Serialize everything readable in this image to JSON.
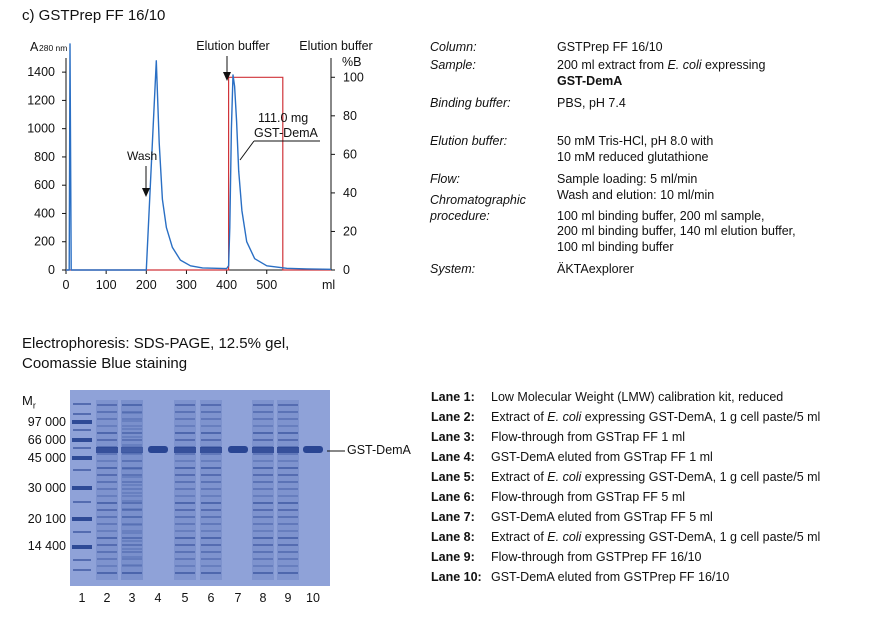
{
  "chrom_title": "c) GSTPrep FF 16/10",
  "chart_data": {
    "type": "line",
    "left_axis_label": "A280 nm",
    "left_axis_label_main": "A",
    "left_axis_label_sub": "280 nm",
    "right_axis_label": "%B",
    "x_unit": "ml",
    "x_ticks": [
      0,
      100,
      200,
      300,
      400,
      500
    ],
    "y_ticks": [
      0,
      200,
      400,
      600,
      800,
      1000,
      1200,
      1400
    ],
    "y2_ticks": [
      0,
      20,
      40,
      60,
      80,
      100
    ],
    "xlim": [
      0,
      660
    ],
    "ylim": [
      0,
      1500
    ],
    "y2lim": [
      0,
      110
    ],
    "annotations": {
      "elution1": "Elution buffer",
      "elution2": "Elution buffer",
      "wash": "Wash",
      "yield_line1": "111.0 mg",
      "yield_line2": "GST-DemA"
    },
    "absorbance": [
      [
        0,
        0
      ],
      [
        8,
        0
      ],
      [
        10,
        1600
      ],
      [
        13,
        0
      ],
      [
        200,
        0
      ],
      [
        225,
        1480
      ],
      [
        232,
        900
      ],
      [
        240,
        500
      ],
      [
        250,
        300
      ],
      [
        265,
        160
      ],
      [
        285,
        70
      ],
      [
        310,
        30
      ],
      [
        340,
        15
      ],
      [
        400,
        10
      ],
      [
        405,
        30
      ],
      [
        408,
        300
      ],
      [
        412,
        1000
      ],
      [
        416,
        1380
      ],
      [
        420,
        1300
      ],
      [
        425,
        1050
      ],
      [
        430,
        700
      ],
      [
        438,
        420
      ],
      [
        450,
        200
      ],
      [
        470,
        80
      ],
      [
        500,
        30
      ],
      [
        550,
        12
      ],
      [
        600,
        8
      ],
      [
        660,
        5
      ]
    ],
    "percent_b": [
      [
        0,
        0
      ],
      [
        405,
        0
      ],
      [
        405,
        100
      ],
      [
        540,
        100
      ],
      [
        540,
        0
      ],
      [
        660,
        0
      ]
    ]
  },
  "conditions": [
    {
      "label": "Column:",
      "lines": [
        "GSTPrep FF 16/10"
      ]
    },
    {
      "label": "Sample:",
      "lines": [
        "200 ml extract from E. coli expressing",
        "GST-DemA"
      ]
    },
    {
      "label": "Binding buffer:",
      "lines": [
        "PBS, pH 7.4"
      ]
    },
    {
      "label": "Elution buffer:",
      "lines": [
        "50 mM Tris-HCl, pH 8.0 with",
        "10 mM reduced glutathione"
      ]
    },
    {
      "label": "Flow:",
      "lines": [
        "Sample loading: 5 ml/min",
        "Wash and elution: 10 ml/min"
      ]
    },
    {
      "label_lines": [
        "Chromatographic",
        "procedure:"
      ],
      "lines": [
        "100 ml binding buffer, 200 ml sample,",
        "200 ml binding buffer, 140 ml elution buffer,",
        "100 ml binding buffer"
      ]
    },
    {
      "label": "System:",
      "lines": [
        "ÄKTAexplorer"
      ]
    }
  ],
  "sample_parts": {
    "pre": "200 ml extract from ",
    "ecoli": "E. coli",
    "post": " expressing",
    "protein": "GST-DemA"
  },
  "electro_title_line1": "Electrophoresis: SDS-PAGE, 12.5% gel,",
  "electro_title_line2": "Coomassie Blue staining",
  "mr_label": "M",
  "mr_sub": "r",
  "mw_markers": [
    "97 000",
    "66 000",
    "45 000",
    "30 000",
    "20 100",
    "14 400"
  ],
  "band_label": "GST-DemA",
  "lane_numbers": [
    "1",
    "2",
    "3",
    "4",
    "5",
    "6",
    "7",
    "8",
    "9",
    "10"
  ],
  "lanes": [
    {
      "num": "Lane 1:",
      "pre": "Low Molecular Weight (LMW) calibration kit, reduced",
      "ital": "",
      "post": ""
    },
    {
      "num": "Lane 2:",
      "pre": "Extract of ",
      "ital": "E. coli",
      "post": " expressing GST-DemA, 1 g cell paste/5 ml"
    },
    {
      "num": "Lane 3:",
      "pre": "Flow-through from GSTrap FF 1 ml",
      "ital": "",
      "post": ""
    },
    {
      "num": "Lane 4:",
      "pre": "GST-DemA eluted from GSTrap FF 1 ml",
      "ital": "",
      "post": ""
    },
    {
      "num": "Lane 5:",
      "pre": "Extract of ",
      "ital": "E. coli",
      "post": " expressing GST-DemA, 1 g cell paste/5 ml"
    },
    {
      "num": "Lane 6:",
      "pre": "Flow-through from GSTrap FF 5 ml",
      "ital": "",
      "post": ""
    },
    {
      "num": "Lane 7:",
      "pre": "GST-DemA eluted from GSTrap FF 5 ml",
      "ital": "",
      "post": ""
    },
    {
      "num": "Lane 8:",
      "pre": "Extract of ",
      "ital": "E. coli",
      "post": " expressing GST-DemA, 1 g cell paste/5 ml"
    },
    {
      "num": "Lane 9:",
      "pre": "Flow-through from GSTPrep FF 16/10",
      "ital": "",
      "post": ""
    },
    {
      "num": "Lane 10:",
      "pre": "GST-DemA eluted from GSTPrep FF 16/10",
      "ital": "",
      "post": ""
    }
  ],
  "colors": {
    "trace": "#2a6fc4",
    "percent_b": "#d0343a",
    "gel": "#8fa2d8",
    "band": "#24408f"
  }
}
